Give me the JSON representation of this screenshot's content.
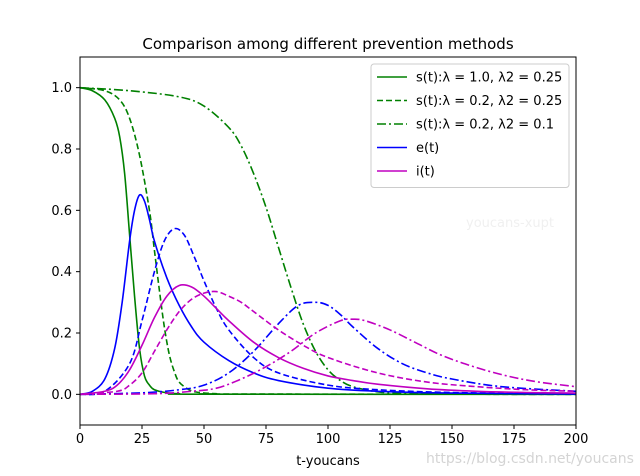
{
  "chart_data": {
    "type": "line",
    "title": "Comparison among different prevention methods",
    "xlabel": "t-youcans",
    "ylabel": "",
    "xlim": [
      0,
      200
    ],
    "ylim": [
      -0.1,
      1.1
    ],
    "xticks": [
      "0",
      "25",
      "50",
      "75",
      "100",
      "125",
      "150",
      "175",
      "200"
    ],
    "yticks": [
      "0.0",
      "0.2",
      "0.4",
      "0.6",
      "0.8",
      "1.0"
    ],
    "legend_position": "upper-right",
    "series": [
      {
        "name": "s(t):λ = 1.0, λ2 = 0.25",
        "color": "#008000",
        "dash": "solid",
        "x": [
          0,
          5,
          10,
          14,
          16,
          18,
          20,
          22,
          24,
          26,
          28,
          30,
          35,
          40,
          50,
          200
        ],
        "y": [
          1.0,
          0.99,
          0.96,
          0.9,
          0.84,
          0.72,
          0.52,
          0.32,
          0.15,
          0.06,
          0.03,
          0.015,
          0.005,
          0.002,
          0.0005,
          0.0
        ]
      },
      {
        "name": "s(t):λ = 0.2, λ2 = 0.25",
        "color": "#008000",
        "dash": "dashed",
        "x": [
          0,
          10,
          16,
          20,
          24,
          28,
          30,
          32,
          34,
          36,
          38,
          40,
          44,
          48,
          55,
          60,
          200
        ],
        "y": [
          1.0,
          0.99,
          0.96,
          0.9,
          0.78,
          0.6,
          0.47,
          0.34,
          0.22,
          0.13,
          0.075,
          0.04,
          0.015,
          0.006,
          0.002,
          0.001,
          0.0
        ]
      },
      {
        "name": "s(t):λ = 0.2, λ2 = 0.1",
        "color": "#008000",
        "dash": "dashdot",
        "x": [
          0,
          20,
          40,
          50,
          60,
          65,
          70,
          75,
          80,
          85,
          90,
          95,
          100,
          105,
          110,
          120,
          130,
          140,
          150,
          200
        ],
        "y": [
          1.0,
          0.99,
          0.97,
          0.94,
          0.87,
          0.81,
          0.72,
          0.61,
          0.48,
          0.35,
          0.23,
          0.14,
          0.08,
          0.045,
          0.025,
          0.008,
          0.003,
          0.001,
          0.0005,
          0.0
        ]
      },
      {
        "name": "e(t)",
        "color": "#0000ff",
        "dash": "solid",
        "x": [
          0,
          5,
          10,
          14,
          17,
          20,
          22,
          24,
          26,
          28,
          30,
          35,
          40,
          45,
          50,
          60,
          70,
          80,
          100,
          120,
          150,
          200
        ],
        "y": [
          0.0,
          0.01,
          0.05,
          0.15,
          0.3,
          0.5,
          0.6,
          0.65,
          0.63,
          0.57,
          0.5,
          0.38,
          0.29,
          0.22,
          0.17,
          0.11,
          0.07,
          0.045,
          0.02,
          0.01,
          0.004,
          0.001
        ]
      },
      {
        "name": "",
        "color": "#0000ff",
        "dash": "dashed",
        "x": [
          0,
          10,
          20,
          25,
          30,
          34,
          38,
          42,
          46,
          50,
          55,
          60,
          70,
          80,
          100,
          120,
          150,
          200
        ],
        "y": [
          0.0,
          0.01,
          0.1,
          0.24,
          0.4,
          0.5,
          0.54,
          0.52,
          0.45,
          0.37,
          0.28,
          0.21,
          0.12,
          0.07,
          0.03,
          0.015,
          0.006,
          0.002
        ]
      },
      {
        "name": "",
        "color": "#0000ff",
        "dash": "dashdot",
        "x": [
          0,
          25,
          40,
          50,
          60,
          70,
          80,
          88,
          95,
          100,
          105,
          110,
          120,
          130,
          140,
          150,
          170,
          200
        ],
        "y": [
          0.0,
          0.005,
          0.015,
          0.03,
          0.07,
          0.14,
          0.23,
          0.29,
          0.3,
          0.29,
          0.26,
          0.22,
          0.15,
          0.1,
          0.07,
          0.05,
          0.025,
          0.01
        ]
      },
      {
        "name": "i(t)",
        "color": "#c000c0",
        "dash": "solid",
        "x": [
          0,
          10,
          15,
          20,
          25,
          30,
          35,
          40,
          45,
          50,
          55,
          60,
          70,
          80,
          90,
          100,
          110,
          120,
          140,
          160,
          180,
          200
        ],
        "y": [
          0.0,
          0.01,
          0.03,
          0.08,
          0.16,
          0.25,
          0.32,
          0.355,
          0.35,
          0.32,
          0.28,
          0.24,
          0.17,
          0.12,
          0.085,
          0.06,
          0.045,
          0.033,
          0.018,
          0.01,
          0.006,
          0.004
        ]
      },
      {
        "name": "",
        "color": "#c000c0",
        "dash": "dashed",
        "x": [
          0,
          15,
          20,
          25,
          30,
          35,
          40,
          45,
          50,
          55,
          60,
          65,
          70,
          80,
          90,
          100,
          120,
          140,
          160,
          180,
          200
        ],
        "y": [
          0.0,
          0.01,
          0.03,
          0.07,
          0.14,
          0.21,
          0.27,
          0.31,
          0.33,
          0.335,
          0.32,
          0.3,
          0.27,
          0.21,
          0.16,
          0.12,
          0.07,
          0.04,
          0.025,
          0.015,
          0.01
        ]
      },
      {
        "name": "",
        "color": "#c000c0",
        "dash": "dashdot",
        "x": [
          0,
          30,
          45,
          55,
          65,
          75,
          85,
          95,
          105,
          110,
          115,
          125,
          135,
          145,
          155,
          165,
          175,
          185,
          200
        ],
        "y": [
          0.0,
          0.002,
          0.01,
          0.02,
          0.05,
          0.09,
          0.14,
          0.2,
          0.24,
          0.245,
          0.24,
          0.21,
          0.17,
          0.13,
          0.1,
          0.075,
          0.055,
          0.04,
          0.025
        ]
      }
    ]
  },
  "watermarks": {
    "inner": "youcans-xupt",
    "corner": "https://blog.csdn.net/youcans"
  }
}
